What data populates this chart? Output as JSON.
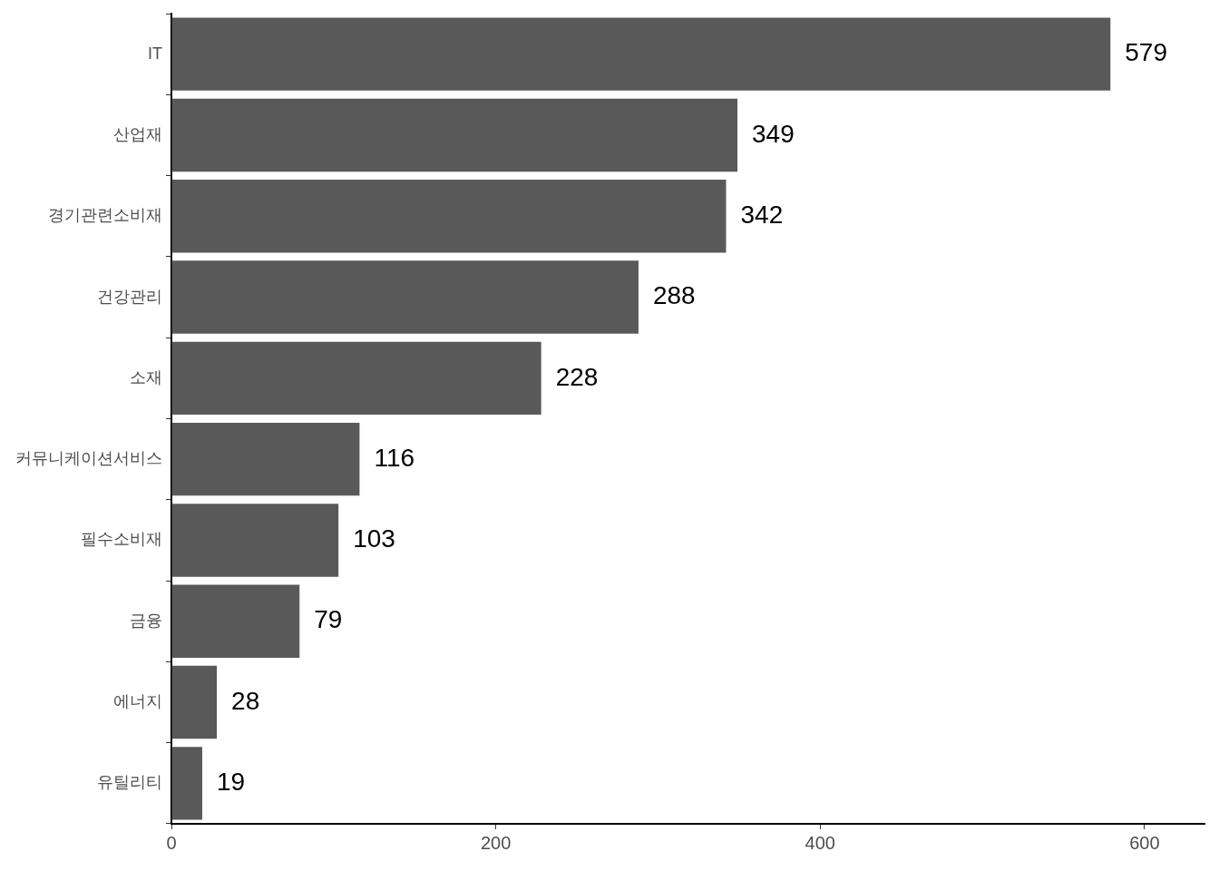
{
  "chart_data": {
    "type": "bar",
    "orientation": "horizontal",
    "categories": [
      "IT",
      "산업재",
      "경기관련소비재",
      "건강관리",
      "소재",
      "커뮤니케이션서비스",
      "필수소비재",
      "금융",
      "에너지",
      "유틸리티"
    ],
    "values": [
      579,
      349,
      342,
      288,
      228,
      116,
      103,
      79,
      28,
      19
    ],
    "color": "#595959",
    "xlim": [
      0,
      637
    ],
    "xticks": [
      0,
      200,
      400,
      600
    ],
    "data_labels": true,
    "grid": false,
    "legend": false
  }
}
